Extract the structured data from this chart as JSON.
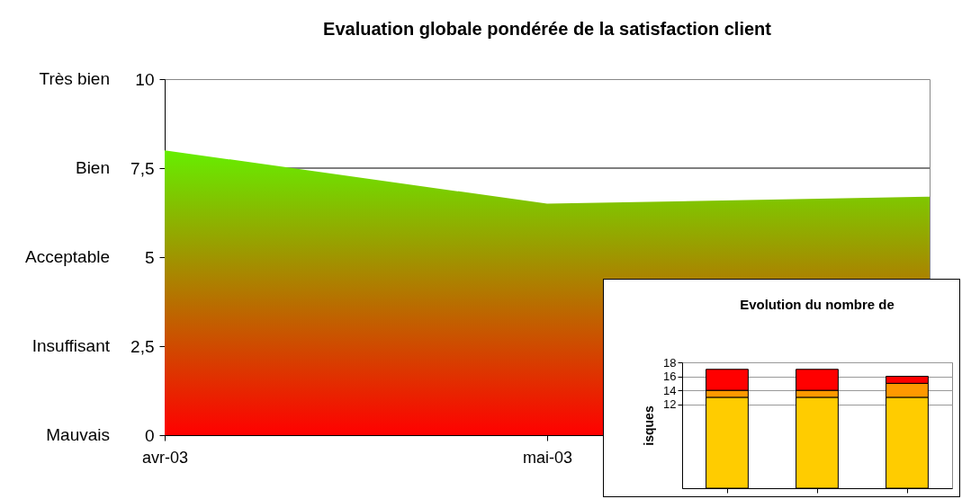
{
  "chart_data": [
    {
      "type": "area",
      "title": "Evaluation globale pondérée de la satisfaction client",
      "categories": [
        "avr-03",
        "mai-03",
        null
      ],
      "series": [
        {
          "color": "#66ee00",
          "values": [
            8,
            6.5,
            6.7
          ]
        }
      ],
      "ylim": [
        0,
        10
      ],
      "yticks": [
        0,
        {
          "value": 2.5,
          "label": "2,5"
        },
        5,
        {
          "value": 7.5,
          "label": "7,5"
        },
        10
      ],
      "annotations": [
        "Mauvais",
        "Insuffisant",
        "Acceptable",
        "Bien",
        "Très bien"
      ],
      "ref_lines": [
        {
          "axis": "y",
          "value": 7.5,
          "color": "#000000"
        }
      ],
      "grid": false
    },
    {
      "type": "bar",
      "stacked": true,
      "title": "Evolution du nombre de",
      "ylabel": "isques",
      "categories": [
        null,
        null,
        null
      ],
      "series": [
        {
          "color": "#ffcc00",
          "values": [
            13,
            13,
            13
          ]
        },
        {
          "color": "#ff9900",
          "values": [
            1,
            1,
            2
          ]
        },
        {
          "color": "#ff0000",
          "values": [
            3,
            3,
            1
          ]
        }
      ],
      "ylim": [
        0,
        18
      ],
      "yticks": [
        12,
        14,
        16,
        18
      ],
      "grid": "y",
      "legend": false,
      "tick_labels": "y"
    }
  ]
}
